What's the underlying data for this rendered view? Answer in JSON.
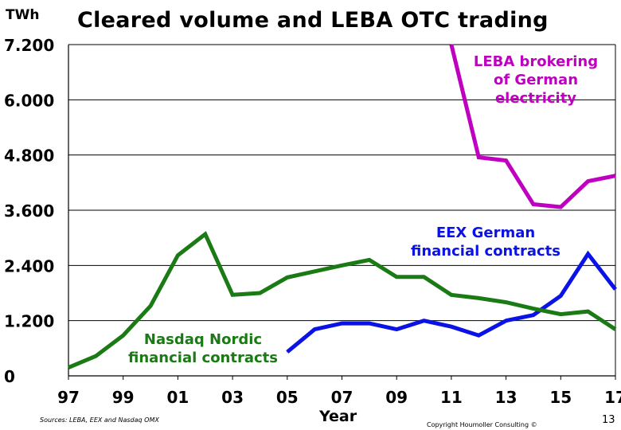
{
  "header": {
    "unit": "TWh",
    "title": "Cleared volume and LEBA OTC trading"
  },
  "footer": {
    "source": "Sources: LEBA, EEX and Nasdaq OMX",
    "copyright": "Copyright Houmoller Consulting ©",
    "page_number": "13"
  },
  "series_labels": {
    "leba": [
      "LEBA brokering",
      "of German",
      "electricity"
    ],
    "eex": [
      "EEX German",
      "financial contracts"
    ],
    "nasdaq": [
      "Nasdaq Nordic",
      "financial contracts"
    ]
  },
  "chart_data": {
    "type": "line",
    "title": "Cleared volume and LEBA OTC trading",
    "xlabel": "Year",
    "ylabel": "TWh",
    "xlim": [
      1997,
      2017
    ],
    "ylim": [
      0,
      7200
    ],
    "grid": true,
    "x_ticks": [
      1997,
      1999,
      2001,
      2003,
      2005,
      2007,
      2009,
      2011,
      2013,
      2015,
      2017
    ],
    "x_tick_labels": [
      "97",
      "99",
      "01",
      "03",
      "05",
      "07",
      "09",
      "11",
      "13",
      "15",
      "17"
    ],
    "y_ticks": [
      0,
      1200,
      2400,
      3600,
      4800,
      6000,
      7200
    ],
    "y_tick_labels": [
      "0",
      "1.200",
      "2.400",
      "3.600",
      "4.800",
      "6.000",
      "7.200"
    ],
    "series": [
      {
        "name": "LEBA brokering of German electricity",
        "color": "#c000c0",
        "x": [
          2011,
          2012,
          2013,
          2014,
          2015,
          2016,
          2017
        ],
        "values": [
          7200,
          4750,
          4680,
          3730,
          3670,
          4230,
          4350
        ]
      },
      {
        "name": "EEX German financial contracts",
        "color": "#0a12e6",
        "x": [
          2005,
          2006,
          2007,
          2008,
          2009,
          2010,
          2011,
          2012,
          2013,
          2014,
          2015,
          2016,
          2017
        ],
        "values": [
          520,
          1010,
          1140,
          1140,
          1010,
          1200,
          1070,
          880,
          1200,
          1320,
          1740,
          2650,
          1880
        ]
      },
      {
        "name": "Nasdaq Nordic financial contracts",
        "color": "#1a7a14",
        "x": [
          1997,
          1998,
          1999,
          2000,
          2001,
          2002,
          2003,
          2004,
          2005,
          2006,
          2007,
          2008,
          2009,
          2010,
          2011,
          2012,
          2013,
          2014,
          2015,
          2016,
          2017
        ],
        "values": [
          180,
          430,
          880,
          1520,
          2620,
          3080,
          1760,
          1800,
          2140,
          2270,
          2400,
          2520,
          2150,
          2150,
          1760,
          1690,
          1600,
          1460,
          1340,
          1400,
          1010
        ]
      }
    ]
  }
}
